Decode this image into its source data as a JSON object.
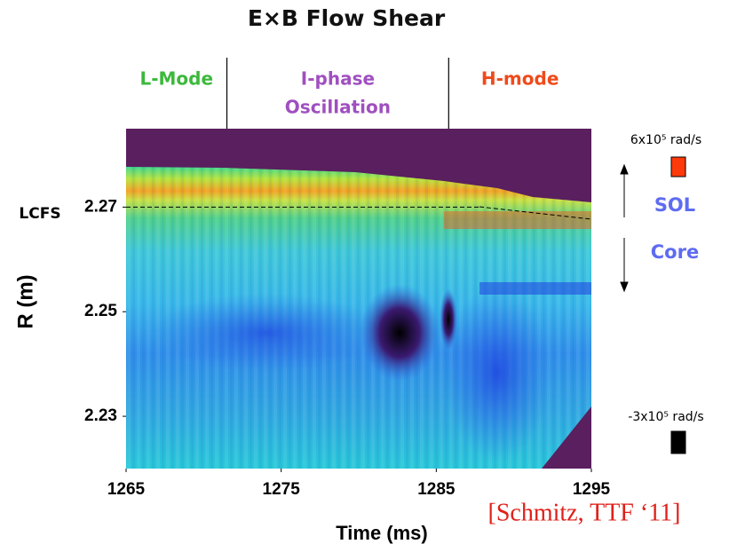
{
  "chart_data": {
    "type": "heatmap",
    "title": "E×B Flow Shear",
    "xlabel": "Time (ms)",
    "ylabel": "R (m)",
    "xlim": [
      1265,
      1295
    ],
    "xticks": [
      1265,
      1275,
      1285,
      1295
    ],
    "ylim": [
      2.22,
      2.285
    ],
    "yticks": [
      2.23,
      2.25,
      2.27
    ],
    "phases": [
      {
        "lines": [
          "L-Mode"
        ],
        "color": "#3cb93c"
      },
      {
        "lines": [
          "I-phase",
          "Oscillation"
        ],
        "color": "#a04fc0"
      },
      {
        "lines": [
          "H-mode"
        ],
        "color": "#f04a1a"
      }
    ],
    "phase_boundaries": [
      1271.5,
      1285.8
    ],
    "lcfs": {
      "label": "LCFS",
      "value": 2.27
    },
    "colorbar": [
      {
        "value": 600000,
        "label": "6x10⁵ rad/s",
        "color": "#ff3a0a"
      },
      {
        "value": -300000,
        "label": "-3x10⁵ rad/s",
        "color": "#000000"
      }
    ],
    "region_labels": [
      "SOL",
      "Core"
    ],
    "citation": "[Schmitz, TTF ‘11]"
  }
}
